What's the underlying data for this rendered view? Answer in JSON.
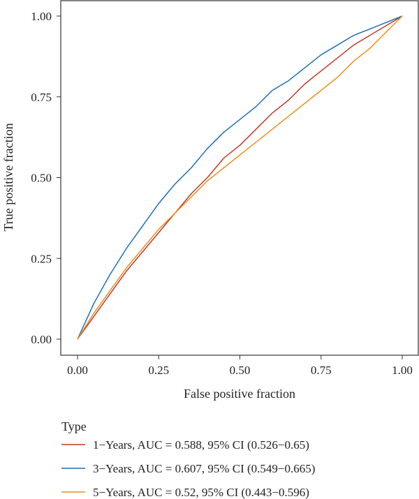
{
  "chart_data": {
    "type": "line",
    "title": "",
    "xlabel": "False positive fraction",
    "ylabel": "True positive fraction",
    "xlim": [
      0,
      1
    ],
    "ylim": [
      0,
      1
    ],
    "x_ticks": [
      "0.00",
      "0.25",
      "0.50",
      "0.75",
      "1.00"
    ],
    "y_ticks": [
      "0.00",
      "0.25",
      "0.50",
      "0.75",
      "1.00"
    ],
    "grid": false,
    "legend": {
      "title": "Type",
      "placement": "bottom-left"
    },
    "series": [
      {
        "name": "1−Years, AUC = 0.588, 95% CI (0.526−0.65)",
        "color": "#c0392b",
        "x": [
          0,
          0.05,
          0.1,
          0.15,
          0.2,
          0.25,
          0.3,
          0.35,
          0.4,
          0.45,
          0.5,
          0.55,
          0.6,
          0.65,
          0.7,
          0.75,
          0.8,
          0.85,
          0.9,
          0.95,
          1
        ],
        "y": [
          0,
          0.07,
          0.14,
          0.21,
          0.27,
          0.33,
          0.39,
          0.45,
          0.5,
          0.56,
          0.6,
          0.65,
          0.7,
          0.74,
          0.79,
          0.83,
          0.87,
          0.91,
          0.94,
          0.97,
          1
        ]
      },
      {
        "name": "3−Years, AUC = 0.607, 95% CI (0.549−0.665)",
        "color": "#1f6fb4",
        "x": [
          0,
          0.05,
          0.1,
          0.15,
          0.2,
          0.25,
          0.3,
          0.35,
          0.4,
          0.45,
          0.5,
          0.55,
          0.6,
          0.65,
          0.7,
          0.75,
          0.8,
          0.85,
          0.9,
          0.95,
          1
        ],
        "y": [
          0,
          0.11,
          0.2,
          0.28,
          0.35,
          0.42,
          0.48,
          0.53,
          0.59,
          0.64,
          0.68,
          0.72,
          0.77,
          0.8,
          0.84,
          0.88,
          0.91,
          0.94,
          0.96,
          0.98,
          1
        ]
      },
      {
        "name": "5−Years, AUC = 0.52, 95% CI (0.443−0.596)",
        "color": "#e8901c",
        "x": [
          0,
          0.05,
          0.1,
          0.15,
          0.2,
          0.25,
          0.3,
          0.35,
          0.4,
          0.45,
          0.5,
          0.55,
          0.6,
          0.65,
          0.7,
          0.75,
          0.8,
          0.85,
          0.9,
          0.95,
          1
        ],
        "y": [
          0,
          0.08,
          0.15,
          0.22,
          0.28,
          0.34,
          0.39,
          0.44,
          0.49,
          0.53,
          0.57,
          0.61,
          0.65,
          0.69,
          0.73,
          0.77,
          0.81,
          0.86,
          0.9,
          0.95,
          1
        ]
      }
    ]
  }
}
